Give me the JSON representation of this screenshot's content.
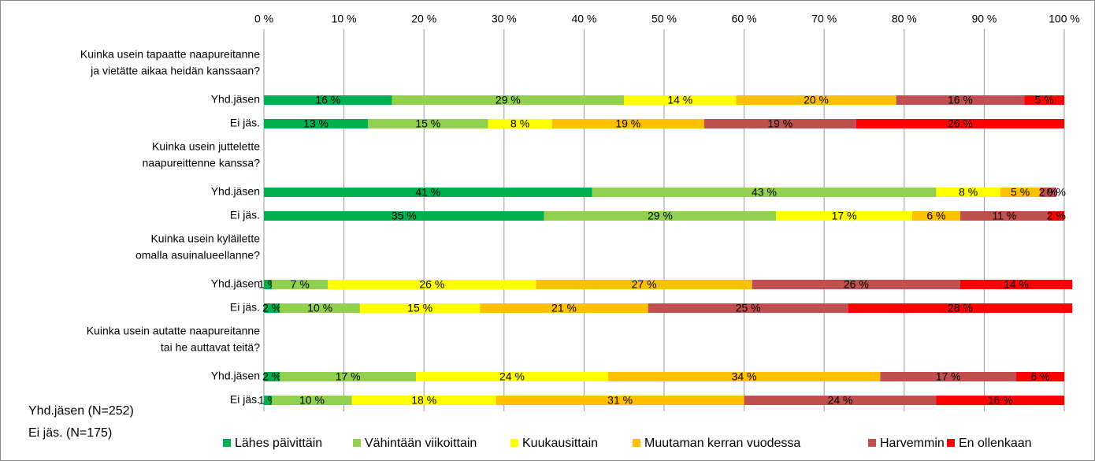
{
  "chart_data": {
    "type": "stacked_bar_horizontal",
    "questions": [
      [
        "Kuinka usein tapaatte naapureitanne",
        "ja vietätte aikaa heidän kanssaan?"
      ],
      [
        "Kuinka usein juttelette",
        "naapureittenne kanssa?"
      ],
      [
        "Kuinka usein kyläilette",
        "omalla asuinalueellanne?"
      ],
      [
        "Kuinka usein autatte naapureitanne",
        "tai he auttavat teitä?"
      ]
    ],
    "categories": [
      "Yhd.jäsen",
      "Ei jäs.",
      "Yhd.jäsen",
      "Ei jäs.",
      "Yhd.jäsen",
      "Ei jäs.",
      "Yhd.jäsen",
      "Ei jäs."
    ],
    "series": [
      {
        "name": "Lähes päivittäin",
        "color": "#00b050",
        "values": [
          16,
          13,
          41,
          35,
          1,
          2,
          2,
          1
        ],
        "value_labels": [
          "16 %",
          "13 %",
          "41 %",
          "35 %",
          "1 %",
          "2 %",
          "2 %",
          "1 %"
        ]
      },
      {
        "name": "Vähintään viikoittain",
        "color": "#92d050",
        "values": [
          29,
          15,
          43,
          29,
          7,
          10,
          17,
          10
        ],
        "value_labels": [
          "29 %",
          "15 %",
          "43 %",
          "29 %",
          "7 %",
          "10 %",
          "17 %",
          "10 %"
        ]
      },
      {
        "name": "Kuukausittain",
        "color": "#ffff00",
        "values": [
          14,
          8,
          8,
          17,
          26,
          15,
          24,
          18
        ],
        "value_labels": [
          "14 %",
          "8 %",
          "8 %",
          "17 %",
          "26 %",
          "15 %",
          "24 %",
          "18 %"
        ]
      },
      {
        "name": "Muutaman kerran vuodessa",
        "color": "#ffc000",
        "values": [
          20,
          19,
          5,
          6,
          27,
          21,
          34,
          31
        ],
        "value_labels": [
          "20 %",
          "19 %",
          "5 %",
          "6 %",
          "27 %",
          "21 %",
          "34 %",
          "31 %"
        ]
      },
      {
        "name": "Harvemmin",
        "color": "#c0504d",
        "values": [
          16,
          19,
          2,
          11,
          26,
          25,
          17,
          24
        ],
        "value_labels": [
          "16 %",
          "19 %",
          "2 %",
          "11 %",
          "26 %",
          "25 %",
          "17 %",
          "24 %"
        ]
      },
      {
        "name": "En ollenkaan",
        "color": "#ff0000",
        "values": [
          5,
          26,
          0,
          2,
          14,
          28,
          6,
          16
        ],
        "value_labels": [
          "5 %",
          "26 %",
          "0 %",
          "2 %",
          "14 %",
          "28 %",
          "6 %",
          "16 %"
        ]
      }
    ],
    "xlim": [
      0,
      100
    ],
    "xticks": [
      {
        "value": 0,
        "label": "0 %"
      },
      {
        "value": 10,
        "label": "10 %"
      },
      {
        "value": 20,
        "label": "20 %"
      },
      {
        "value": 30,
        "label": "30 %"
      },
      {
        "value": 40,
        "label": "40 %"
      },
      {
        "value": 50,
        "label": "50 %"
      },
      {
        "value": 60,
        "label": "60 %"
      },
      {
        "value": 70,
        "label": "70 %"
      },
      {
        "value": 80,
        "label": "80 %"
      },
      {
        "value": 90,
        "label": "90 %"
      },
      {
        "value": 100,
        "label": "100 %"
      }
    ],
    "grid": true,
    "legend": "bottom",
    "notes": [
      "Yhd.jäsen (N=252)",
      "Ei jäs. (N=175)"
    ]
  }
}
